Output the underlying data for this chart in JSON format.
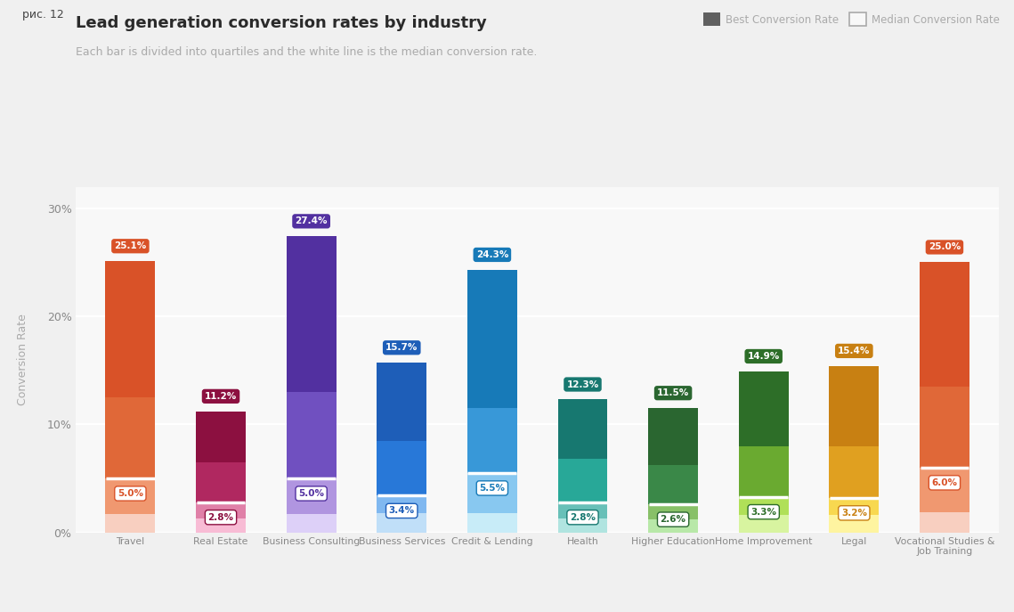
{
  "title": "Lead generation conversion rates by industry",
  "subtitle": "Each bar is divided into quartiles and the white line is the median conversion rate.",
  "figure_label": "рис. 12",
  "ylabel": "Conversion Rate",
  "legend_best": "Best Conversion Rate",
  "legend_median": "Median Conversion Rate",
  "categories": [
    "Travel",
    "Real Estate",
    "Business Consulting",
    "Business Services",
    "Credit & Lending",
    "Health",
    "Higher Education",
    "Home Improvement",
    "Legal",
    "Vocational Studies &\nJob Training"
  ],
  "best_values": [
    25.1,
    11.2,
    27.4,
    15.7,
    24.3,
    12.3,
    11.5,
    14.9,
    15.4,
    25.0
  ],
  "median_values": [
    5.0,
    2.8,
    5.0,
    3.4,
    5.5,
    2.8,
    2.6,
    3.3,
    3.2,
    6.0
  ],
  "q1_tops": [
    1.7,
    1.3,
    1.7,
    1.8,
    1.8,
    1.3,
    1.2,
    1.6,
    1.6,
    1.9
  ],
  "q3_tops": [
    12.5,
    6.5,
    13.0,
    8.5,
    11.5,
    6.8,
    6.2,
    8.0,
    8.0,
    13.5
  ],
  "colors_dark": [
    "#d95228",
    "#8c1040",
    "#5230a0",
    "#1e5eb8",
    "#177ab8",
    "#177870",
    "#2a6630",
    "#2d6e28",
    "#c88012",
    "#d95228"
  ],
  "colors_mid": [
    "#e06838",
    "#b02860",
    "#7050c0",
    "#2878d8",
    "#3898d8",
    "#28a898",
    "#3a8848",
    "#6aaa30",
    "#e0a020",
    "#e06838"
  ],
  "colors_light": [
    "#f09870",
    "#e080a8",
    "#b095e0",
    "#80b8f0",
    "#88c8f0",
    "#68c0b8",
    "#88c068",
    "#b0e058",
    "#f8d850",
    "#f09870"
  ],
  "colors_lightest": [
    "#f8cfc0",
    "#f8bcd5",
    "#ddd0f8",
    "#c0dff8",
    "#c8ecf8",
    "#b0e4e0",
    "#b8e8a8",
    "#d8f4a0",
    "#fef4a0",
    "#f8cfc0"
  ],
  "bar_width": 0.55,
  "ylim": [
    0,
    32
  ],
  "yticks": [
    0,
    10,
    20,
    30
  ],
  "ytick_labels": [
    "0%",
    "10%",
    "20%",
    "30%"
  ],
  "background_color": "#f0f0f0",
  "grid_color": "#e8e8e8"
}
